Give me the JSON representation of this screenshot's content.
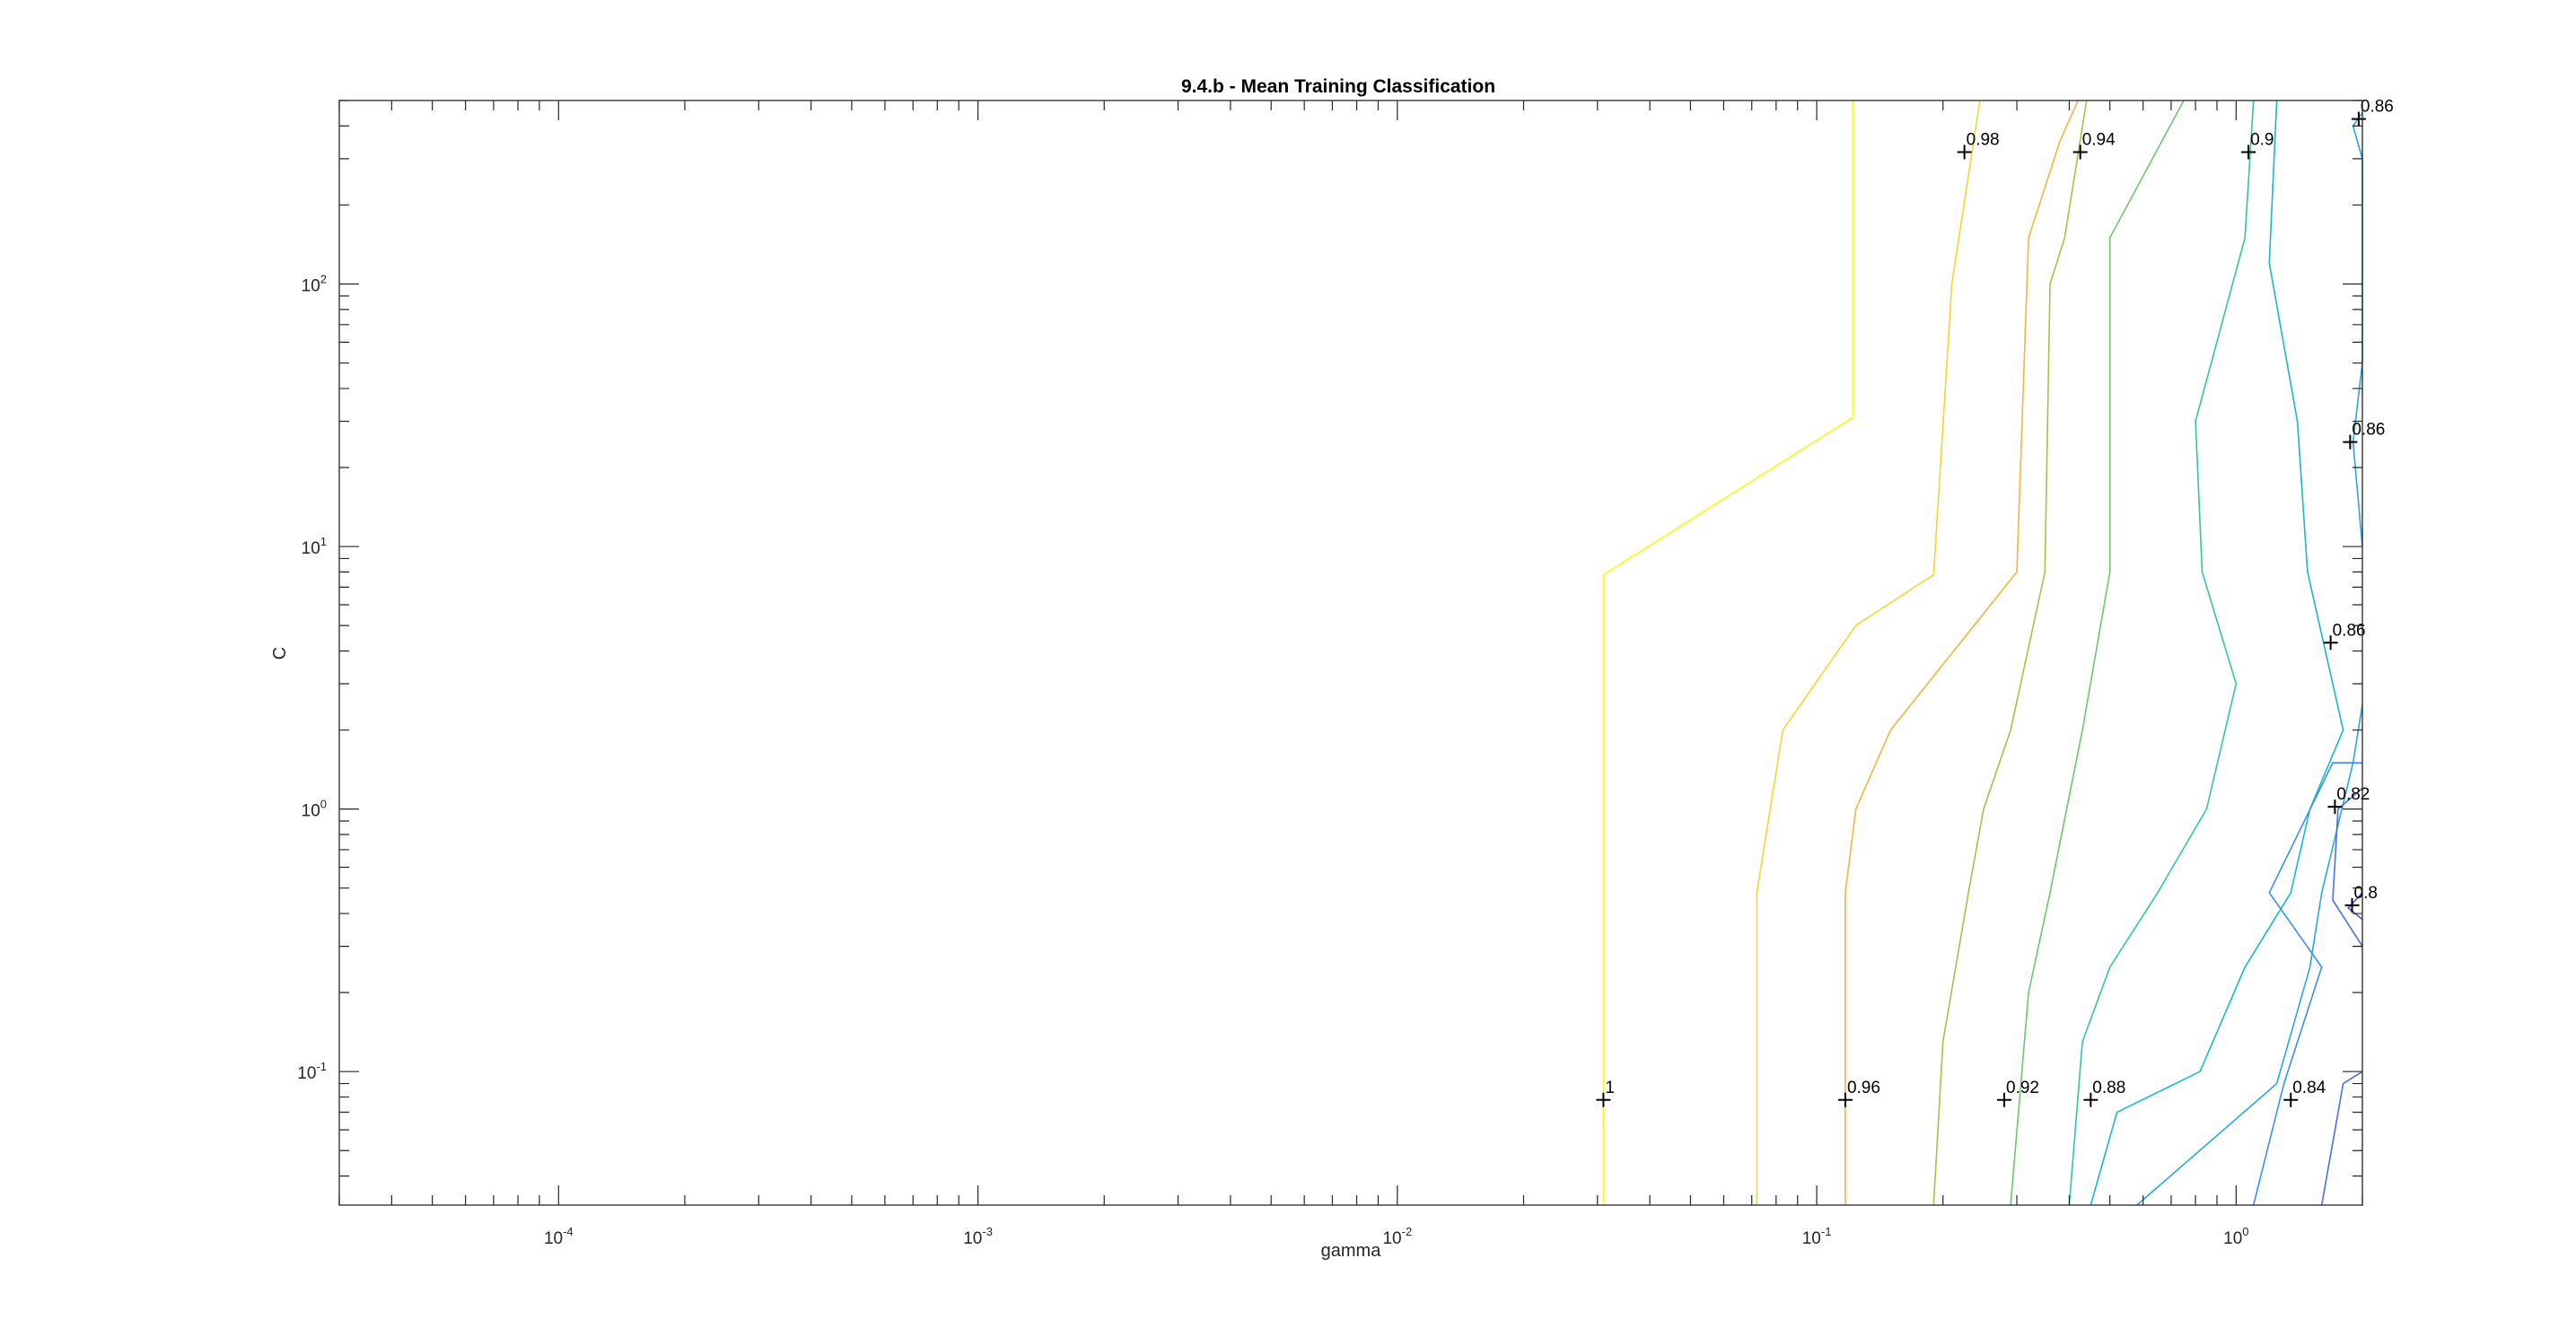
{
  "chart_data": {
    "type": "contour",
    "title": "9.4.b - Mean Training Classification",
    "xlabel": "gamma",
    "ylabel": "C",
    "xscale": "log",
    "yscale": "log",
    "xlim": [
      3e-05,
      2
    ],
    "ylim": [
      0.031,
      500
    ],
    "grid": false,
    "legend": "none",
    "x_ticks": [
      {
        "base": "10",
        "exp": "-4",
        "value": 0.0001
      },
      {
        "base": "10",
        "exp": "-3",
        "value": 0.001
      },
      {
        "base": "10",
        "exp": "-2",
        "value": 0.01
      },
      {
        "base": "10",
        "exp": "-1",
        "value": 0.1
      },
      {
        "base": "10",
        "exp": "0",
        "value": 1
      }
    ],
    "y_ticks": [
      {
        "base": "10",
        "exp": "-1",
        "value": 0.1
      },
      {
        "base": "10",
        "exp": "0",
        "value": 1
      },
      {
        "base": "10",
        "exp": "1",
        "value": 10
      },
      {
        "base": "10",
        "exp": "2",
        "value": 100
      }
    ],
    "contours": [
      {
        "level": "1",
        "color": "#f9fb0e",
        "points": [
          [
            0.031,
            0.031
          ],
          [
            0.031,
            7.8
          ],
          [
            0.122,
            31
          ],
          [
            0.122,
            500
          ]
        ]
      },
      {
        "level": "0.98",
        "color": "#f5d530",
        "points": [
          [
            0.072,
            0.031
          ],
          [
            0.072,
            0.48
          ],
          [
            0.083,
            2
          ],
          [
            0.124,
            5
          ],
          [
            0.19,
            7.8
          ],
          [
            0.21,
            100
          ],
          [
            0.245,
            500
          ]
        ]
      },
      {
        "level": "0.96",
        "color": "#f0b63d",
        "points": [
          [
            0.117,
            0.031
          ],
          [
            0.117,
            0.48
          ],
          [
            0.124,
            1
          ],
          [
            0.15,
            2
          ],
          [
            0.3,
            8
          ],
          [
            0.32,
            150
          ],
          [
            0.38,
            350
          ],
          [
            0.42,
            500
          ]
        ]
      },
      {
        "level": "0.94",
        "color": "#a8c046",
        "points": [
          [
            0.19,
            0.031
          ],
          [
            0.2,
            0.13
          ],
          [
            0.23,
            0.48
          ],
          [
            0.25,
            1
          ],
          [
            0.29,
            2
          ],
          [
            0.35,
            8
          ],
          [
            0.36,
            100
          ],
          [
            0.39,
            150
          ],
          [
            0.44,
            500
          ]
        ]
      },
      {
        "level": "0.92",
        "color": "#6ec56e",
        "points": [
          [
            0.29,
            0.031
          ],
          [
            0.32,
            0.2
          ],
          [
            0.36,
            0.48
          ],
          [
            0.43,
            2
          ],
          [
            0.5,
            8
          ],
          [
            0.5,
            150
          ],
          [
            0.75,
            500
          ]
        ]
      },
      {
        "level": "0.9",
        "color": "#31c6a0",
        "points": [
          [
            0.4,
            0.031
          ],
          [
            0.43,
            0.13
          ],
          [
            0.5,
            0.25
          ],
          [
            0.65,
            0.48
          ],
          [
            0.85,
            1
          ],
          [
            1.0,
            3
          ],
          [
            0.83,
            8
          ],
          [
            0.8,
            30
          ],
          [
            1.05,
            150
          ],
          [
            1.1,
            500
          ]
        ]
      },
      {
        "level": "0.88",
        "color": "#18b8c8",
        "points": [
          [
            0.45,
            0.031
          ],
          [
            0.52,
            0.07
          ],
          [
            0.82,
            0.1
          ],
          [
            1.05,
            0.25
          ],
          [
            1.35,
            0.48
          ],
          [
            1.5,
            1
          ],
          [
            1.8,
            2
          ],
          [
            1.48,
            8
          ],
          [
            1.4,
            30
          ],
          [
            1.2,
            120
          ],
          [
            1.25,
            500
          ]
        ]
      },
      {
        "level": "0.86",
        "color": "#2aa6e0",
        "points": [
          [
            0.58,
            0.031
          ],
          [
            1.25,
            0.09
          ],
          [
            1.5,
            0.25
          ],
          [
            1.6,
            0.48
          ],
          [
            1.9,
            1.5
          ],
          [
            2.0,
            2.5
          ]
        ]
      },
      {
        "level": "0.84",
        "color": "#3a8fee",
        "points": [
          [
            1.1,
            0.031
          ],
          [
            1.3,
            0.09
          ],
          [
            1.6,
            0.25
          ],
          [
            1.2,
            0.48
          ],
          [
            1.7,
            1.5
          ],
          [
            2.0,
            1.5
          ]
        ]
      },
      {
        "level": "0.82",
        "color": "#4a6fe5",
        "points": [
          [
            1.6,
            0.031
          ],
          [
            1.8,
            0.09
          ],
          [
            2.0,
            0.1
          ]
        ]
      },
      {
        "level": "0.86",
        "color": "#2aa6e0",
        "points": [
          [
            2.0,
            10
          ],
          [
            1.9,
            25
          ],
          [
            2.0,
            50
          ],
          [
            2.0,
            300
          ],
          [
            1.9,
            400
          ],
          [
            2.0,
            450
          ]
        ]
      },
      {
        "level": "0.82",
        "color": "#4a6fe5",
        "points": [
          [
            2.0,
            0.3
          ],
          [
            1.7,
            0.45
          ],
          [
            1.75,
            1
          ],
          [
            2.0,
            1.2
          ]
        ]
      },
      {
        "level": "0.8",
        "color": "#4855d0",
        "points": [
          [
            2.0,
            0.38
          ],
          [
            1.85,
            0.42
          ],
          [
            2.0,
            0.48
          ]
        ]
      }
    ],
    "labels": [
      {
        "text": "1",
        "x": 0.031,
        "y": 0.078
      },
      {
        "text": "0.96",
        "x": 0.117,
        "y": 0.078
      },
      {
        "text": "0.92",
        "x": 0.28,
        "y": 0.078
      },
      {
        "text": "0.88",
        "x": 0.45,
        "y": 0.078
      },
      {
        "text": "0.84",
        "x": 1.35,
        "y": 0.078
      },
      {
        "text": "0.98",
        "x": 0.225,
        "y": 318
      },
      {
        "text": "0.94",
        "x": 0.425,
        "y": 318
      },
      {
        "text": "0.9",
        "x": 1.07,
        "y": 318
      },
      {
        "text": "0.86",
        "x": 1.96,
        "y": 425
      },
      {
        "text": "0.86",
        "x": 1.87,
        "y": 25
      },
      {
        "text": "0.86",
        "x": 1.68,
        "y": 4.3
      },
      {
        "text": "0.82",
        "x": 1.72,
        "y": 1.02
      },
      {
        "text": "0.8",
        "x": 1.89,
        "y": 0.43
      }
    ]
  }
}
